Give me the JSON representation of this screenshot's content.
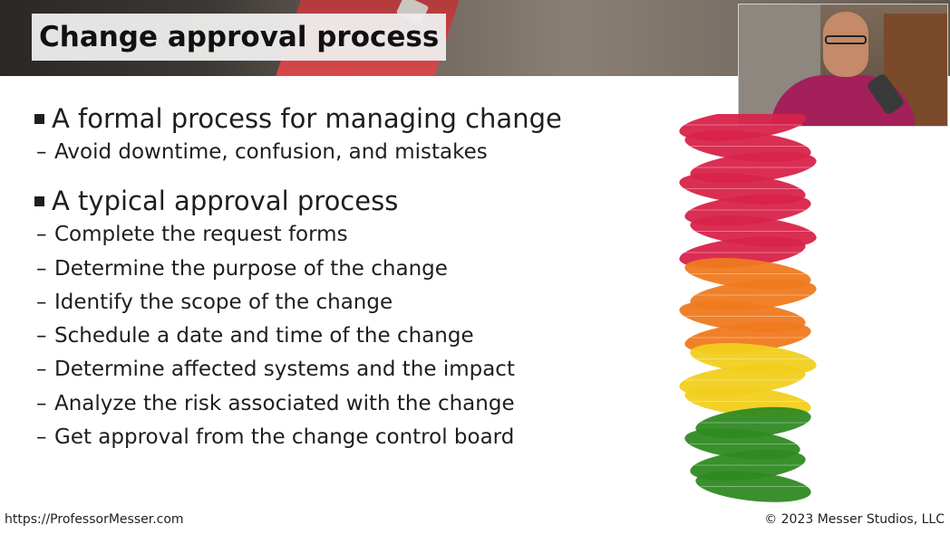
{
  "slide": {
    "title": "Change approval process",
    "sections": [
      {
        "heading": "A formal process for managing change",
        "items": [
          "Avoid downtime, confusion, and mistakes"
        ]
      },
      {
        "heading": "A typical approval process",
        "items": [
          "Complete the request forms",
          "Determine the purpose of the change",
          "Identify the scope of the change",
          "Schedule a date and time of the change",
          "Determine affected systems and the impact",
          "Analyze the risk associated with the change",
          "Get approval from the change control board"
        ]
      }
    ]
  },
  "footer": {
    "url": "https://ProfessorMesser.com",
    "copyright": "© 2023 Messer Studios, LLC"
  },
  "colors": {
    "leaf_red": "#d8234a",
    "leaf_orange": "#ef7a1f",
    "leaf_yellow": "#f1cf1d",
    "leaf_green": "#2f8a22"
  },
  "icons": [
    "square-bullet-icon",
    "dash-bullet-icon"
  ]
}
